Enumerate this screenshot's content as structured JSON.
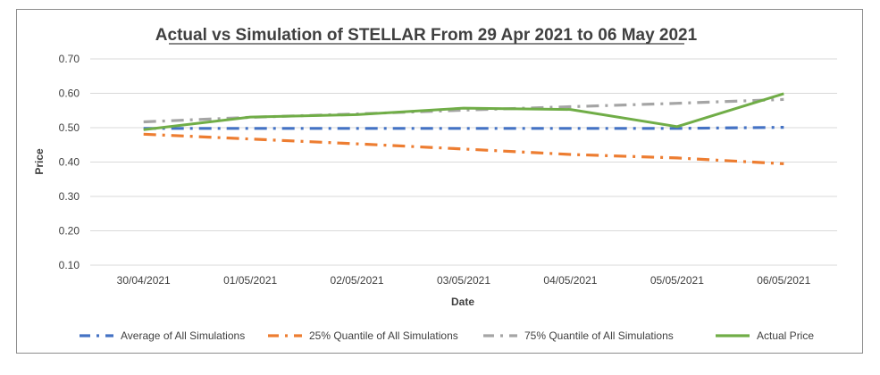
{
  "chart_data": {
    "type": "line",
    "title": "Actual vs Simulation of STELLAR From 29 Apr 2021 to 06 May 2021",
    "xlabel": "Date",
    "ylabel": "Price",
    "categories": [
      "30/04/2021",
      "01/05/2021",
      "02/05/2021",
      "03/05/2021",
      "04/05/2021",
      "05/05/2021",
      "06/05/2021"
    ],
    "ylim": [
      0.1,
      0.7
    ],
    "yticks": [
      "0.10",
      "0.20",
      "0.30",
      "0.40",
      "0.50",
      "0.60",
      "0.70"
    ],
    "grid": true,
    "legend_position": "bottom",
    "series": [
      {
        "name": "Average of All Simulations",
        "color": "#4472c4",
        "dash": "long-dash-dot",
        "values": [
          0.498,
          0.498,
          0.498,
          0.498,
          0.498,
          0.498,
          0.501
        ]
      },
      {
        "name": "25% Quantile of All Simulations",
        "color": "#ed7d31",
        "dash": "long-dash-dot",
        "values": [
          0.481,
          0.467,
          0.453,
          0.438,
          0.422,
          0.412,
          0.395
        ]
      },
      {
        "name": "75% Quantile of All Simulations",
        "color": "#a5a5a5",
        "dash": "long-dash-dot",
        "values": [
          0.517,
          0.53,
          0.54,
          0.551,
          0.561,
          0.571,
          0.582
        ]
      },
      {
        "name": "Actual Price",
        "color": "#70ad47",
        "dash": "solid",
        "values": [
          0.494,
          0.531,
          0.538,
          0.557,
          0.553,
          0.503,
          0.599
        ]
      }
    ]
  }
}
